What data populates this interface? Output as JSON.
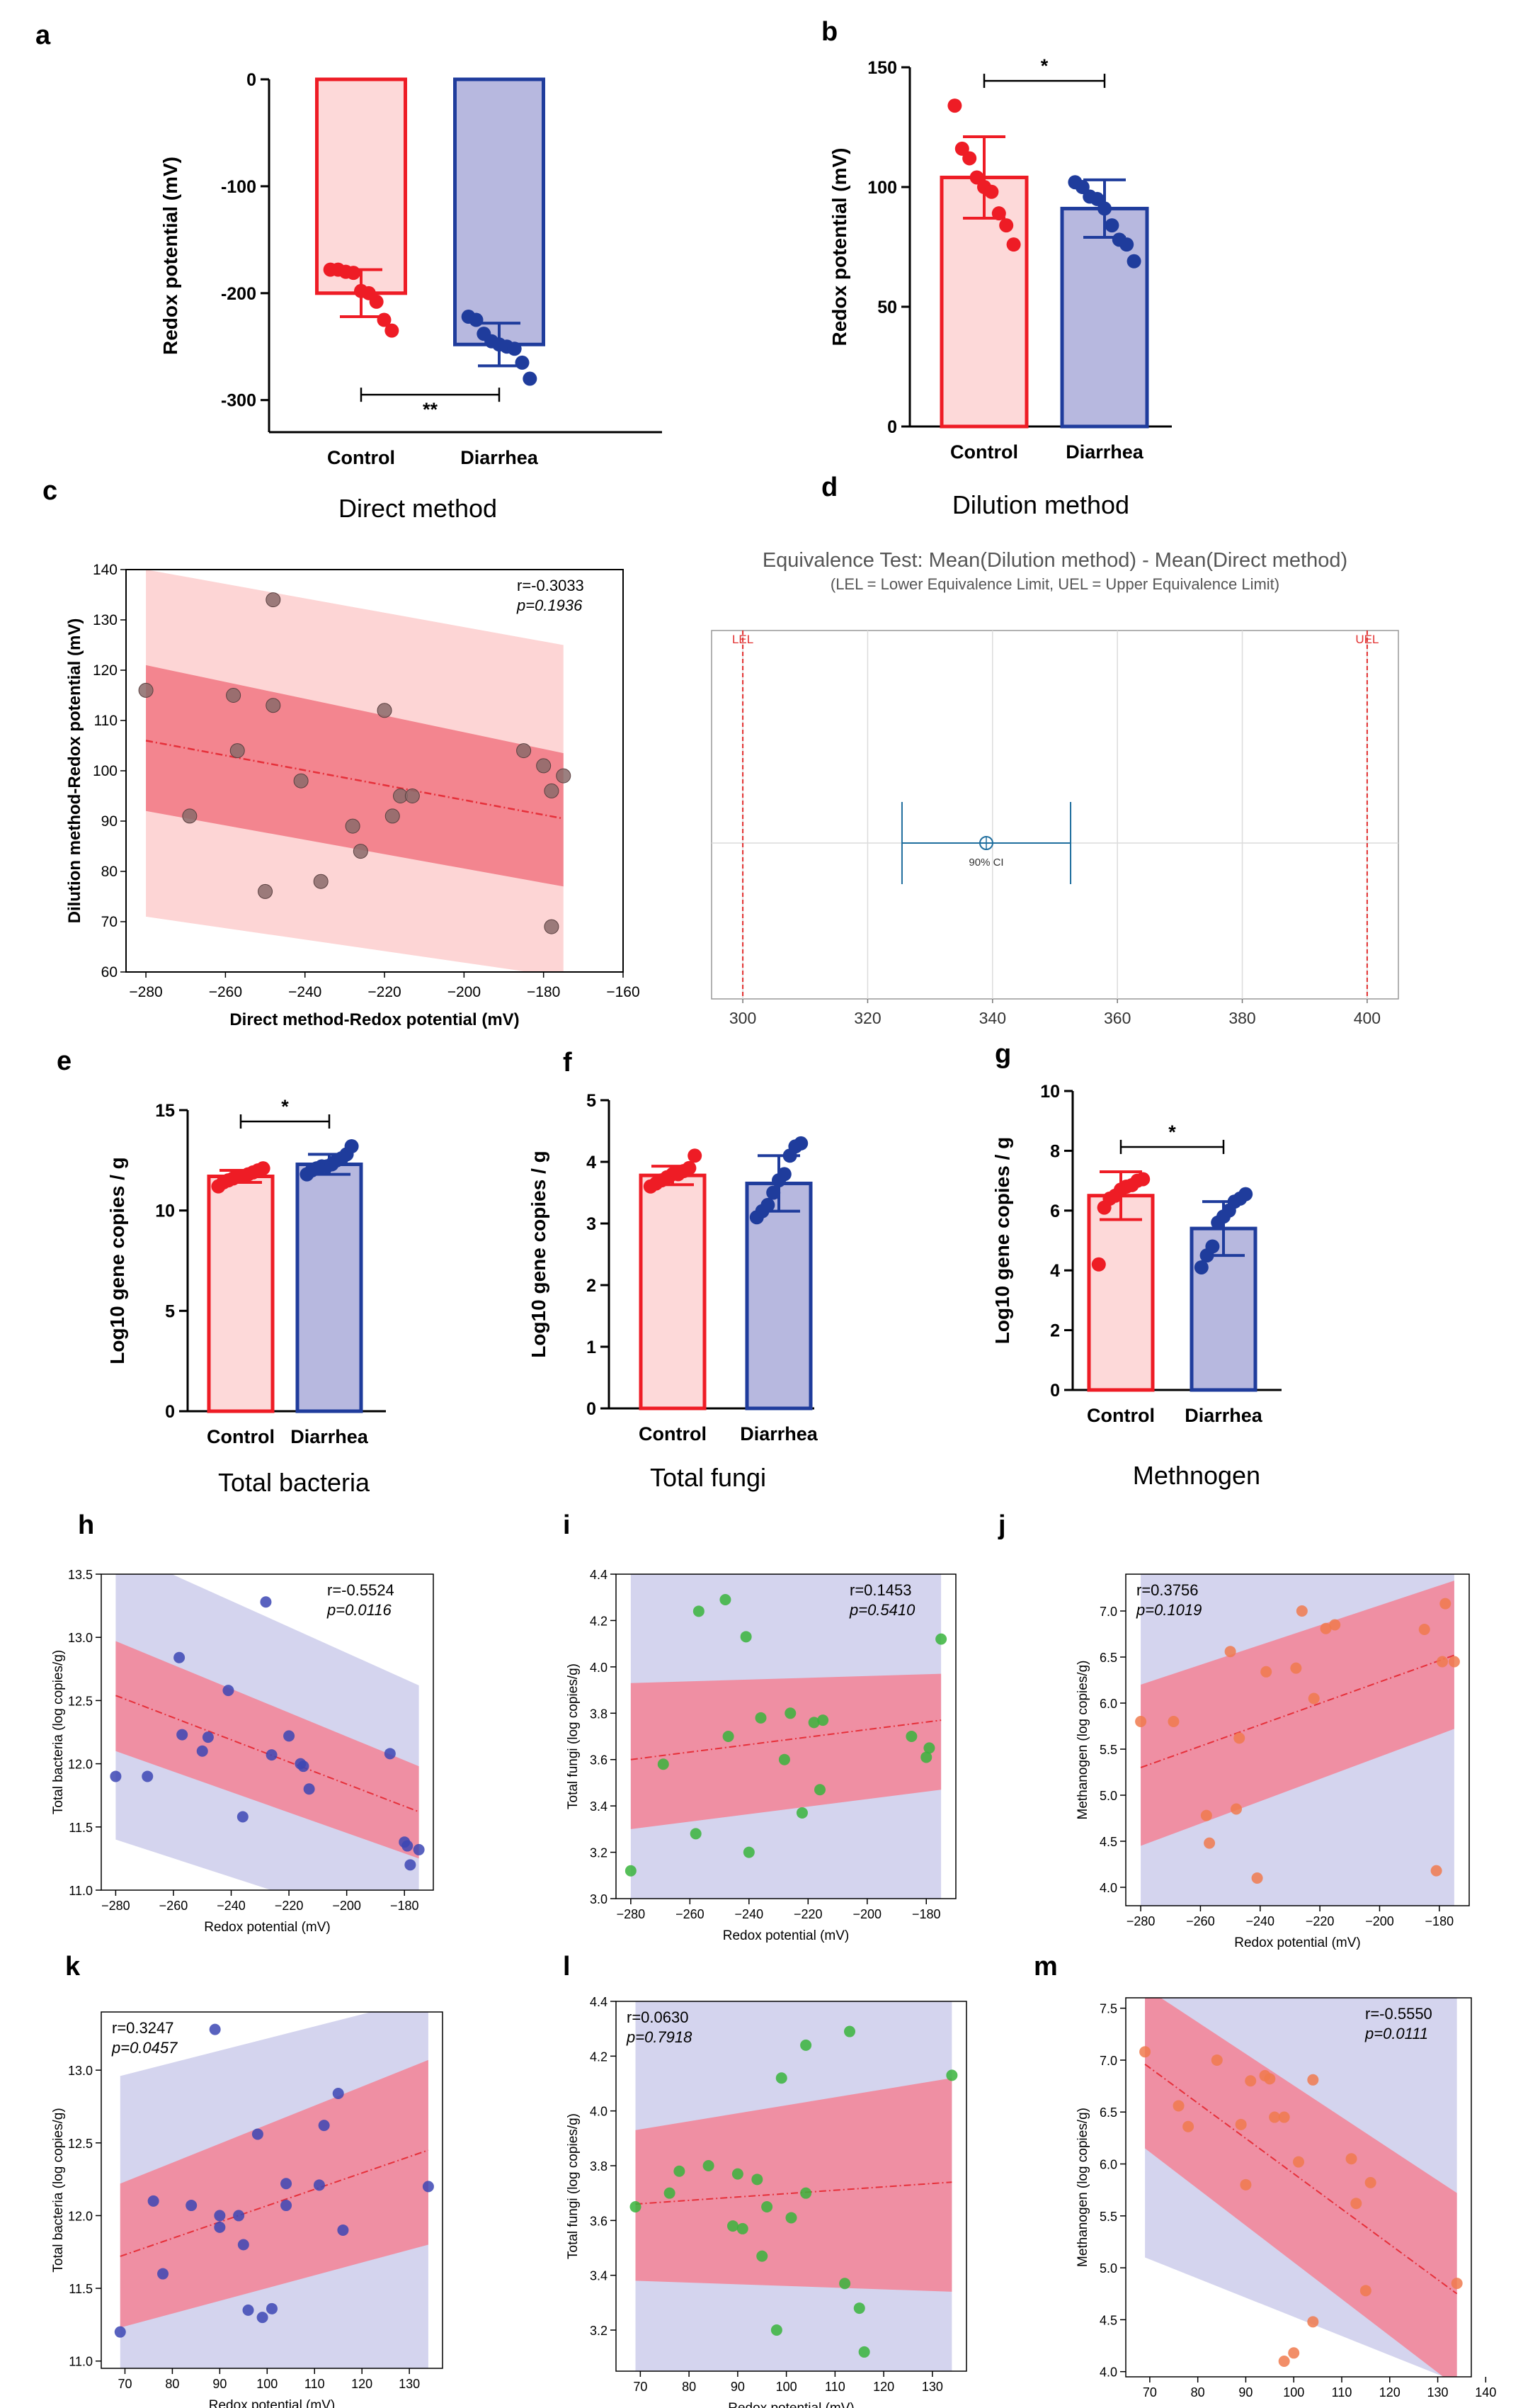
{
  "colors": {
    "control_fill": "#fdd9d9",
    "control_stroke": "#ee1c25",
    "diarrhea_fill": "#b7b8df",
    "diarrhea_stroke": "#1f3c9c",
    "ci_light_red": "#fdd5d5",
    "ci_dark_red": "#f3858f",
    "ci_lavender": "#d4d4ee",
    "ci_pink": "#ef8fa3",
    "trend_red": "#e6303a",
    "scatter_gray": "#8a6a6a",
    "scatter_blue": "#3c46b4",
    "scatter_green": "#38b43c",
    "scatter_orange": "#f07a4e",
    "eq_line": "#1f6e9e",
    "eq_limit": "#e23030"
  },
  "chart_data": [
    {
      "id": "a",
      "type": "bar",
      "letter": "a",
      "title": "",
      "group_label": "Direct method",
      "xlabel": "",
      "ylabel": "Redox potential (mV)",
      "ylim": [
        -330,
        0
      ],
      "yticks": [
        0,
        -100,
        -200,
        -300
      ],
      "ytick_labels": [
        "0",
        "-100",
        "-200",
        "-300"
      ],
      "categories": [
        "Control",
        "Diarrhea"
      ],
      "values": [
        -200,
        -248
      ],
      "sd": [
        22,
        20
      ],
      "points": [
        [
          -178,
          -178,
          -180,
          -181,
          -198,
          -200,
          -208,
          -225,
          -235
        ],
        [
          -222,
          -225,
          -238,
          -245,
          -248,
          -250,
          -252,
          -265,
          -280
        ]
      ],
      "significance": {
        "label": "**",
        "position": "below"
      }
    },
    {
      "id": "b",
      "type": "bar",
      "letter": "b",
      "title": "",
      "group_label": "Dilution method",
      "xlabel": "",
      "ylabel": "Redox potential (mV)",
      "ylim": [
        0,
        150
      ],
      "yticks": [
        0,
        50,
        100,
        150
      ],
      "ytick_labels": [
        "0",
        "50",
        "100",
        "150"
      ],
      "categories": [
        "Control",
        "Diarrhea"
      ],
      "values": [
        104,
        91
      ],
      "sd": [
        17,
        12
      ],
      "points": [
        [
          134,
          116,
          112,
          104,
          100,
          98,
          89,
          84,
          76
        ],
        [
          102,
          100,
          96,
          95,
          91,
          84,
          78,
          76,
          69
        ]
      ],
      "significance": {
        "label": "*",
        "position": "above"
      }
    },
    {
      "id": "c",
      "type": "scatter",
      "letter": "c",
      "xlabel": "Direct method-Redox potential (mV)",
      "ylabel": "Dilution method-Redox potential (mV)",
      "xlim": [
        -285,
        -160
      ],
      "ylim": [
        60,
        140
      ],
      "xticks": [
        -280,
        -260,
        -240,
        -220,
        -200,
        -180,
        -160
      ],
      "xtick_labels": [
        "−280",
        "−260",
        "−240",
        "−220",
        "−200",
        "−180",
        "−160"
      ],
      "yticks": [
        60,
        70,
        80,
        90,
        100,
        110,
        120,
        130,
        140
      ],
      "ytick_labels": [
        "60",
        "70",
        "80",
        "90",
        "100",
        "110",
        "120",
        "130",
        "140"
      ],
      "x": [
        -280,
        -269,
        -258,
        -257,
        -250,
        -248,
        -241,
        -236,
        -228,
        -226,
        -220,
        -218,
        -216,
        -213,
        -185,
        -180,
        -178,
        -178,
        -175
      ],
      "y": [
        116,
        91,
        115,
        104,
        76,
        113,
        98,
        78,
        89,
        84,
        112,
        91,
        95,
        95,
        104,
        101,
        96,
        69,
        99
      ],
      "point_top_y": 134,
      "point_top_x": -248,
      "r_text": "r=-0.3033",
      "p_text": "p=0.1936",
      "line": {
        "x0": -280,
        "y0": 106,
        "x1": -175,
        "y1": 90.5
      },
      "ci_inner_upper": [
        121,
        103.5
      ],
      "ci_inner_lower": [
        92,
        77
      ],
      "ci_outer_upper": [
        140,
        125
      ],
      "ci_outer_lower": [
        71,
        59
      ]
    },
    {
      "id": "d",
      "type": "equivalence",
      "letter": "d",
      "title": "Equivalence Test: Mean(Dilution method) - Mean(Direct method)",
      "subtitle": "(LEL = Lower Equivalence Limit, UEL = Upper Equivalence Limit)",
      "xlim": [
        295,
        405
      ],
      "xticks": [
        300,
        320,
        340,
        360,
        380,
        400
      ],
      "xtick_labels": [
        "300",
        "320",
        "340",
        "360",
        "380",
        "400"
      ],
      "lel": 300,
      "uel": 400,
      "lel_label": "LEL",
      "uel_label": "UEL",
      "mean": 339,
      "ci_low": 325.5,
      "ci_high": 352.5,
      "ci_label": "90% CI"
    },
    {
      "id": "e",
      "type": "bar",
      "letter": "e",
      "group_label": "Total bacteria",
      "ylabel": "Log10 gene copies / g",
      "ylim": [
        0,
        15
      ],
      "yticks": [
        0,
        5,
        10,
        15
      ],
      "ytick_labels": [
        "0",
        "5",
        "10",
        "15"
      ],
      "categories": [
        "Control",
        "Diarrhea"
      ],
      "values": [
        11.7,
        12.3
      ],
      "sd": [
        0.3,
        0.5
      ],
      "points": [
        [
          11.2,
          11.4,
          11.5,
          11.6,
          11.7,
          11.7,
          11.8,
          11.9,
          12.0,
          12.1
        ],
        [
          11.8,
          12.0,
          12.1,
          12.2,
          12.2,
          12.3,
          12.5,
          12.6,
          12.8,
          13.2
        ]
      ],
      "significance": {
        "label": "*",
        "position": "above"
      }
    },
    {
      "id": "f",
      "type": "bar",
      "letter": "f",
      "group_label": "Total fungi",
      "ylabel": "Log10 gene copies / g",
      "ylim": [
        0,
        5
      ],
      "yticks": [
        0,
        1,
        2,
        3,
        4,
        5
      ],
      "ytick_labels": [
        "0",
        "1",
        "2",
        "3",
        "4",
        "5"
      ],
      "categories": [
        "Control",
        "Diarrhea"
      ],
      "values": [
        3.78,
        3.65
      ],
      "sd": [
        0.15,
        0.45
      ],
      "points": [
        [
          3.6,
          3.65,
          3.7,
          3.75,
          3.8,
          3.8,
          3.85,
          3.9,
          4.1
        ],
        [
          3.1,
          3.2,
          3.3,
          3.5,
          3.7,
          3.8,
          4.1,
          4.25,
          4.3
        ]
      ],
      "significance": null
    },
    {
      "id": "g",
      "type": "bar",
      "letter": "g",
      "group_label": "Methnogen",
      "ylabel": "Log10 gene copies / g",
      "ylim": [
        0,
        10
      ],
      "yticks": [
        0,
        2,
        4,
        6,
        8,
        10
      ],
      "ytick_labels": [
        "0",
        "2",
        "4",
        "6",
        "8",
        "10"
      ],
      "categories": [
        "Control",
        "Diarrhea"
      ],
      "values": [
        6.5,
        5.4
      ],
      "sd": [
        0.8,
        0.9
      ],
      "points": [
        [
          4.2,
          6.1,
          6.4,
          6.5,
          6.7,
          6.8,
          6.85,
          7.0,
          7.05
        ],
        [
          4.1,
          4.5,
          4.8,
          5.6,
          5.8,
          6.0,
          6.3,
          6.4,
          6.55
        ]
      ],
      "significance": {
        "label": "*",
        "position": "above"
      }
    },
    {
      "id": "h",
      "type": "scatter",
      "letter": "h",
      "color_key": "scatter_blue",
      "band_key": "ci_lavender",
      "xlabel": "Redox potential (mV)",
      "ylabel": "Total bacteria (log copies/g)",
      "xlim": [
        -285,
        -170
      ],
      "ylim": [
        11.0,
        13.5
      ],
      "xticks": [
        -280,
        -260,
        -240,
        -220,
        -200,
        -180
      ],
      "xtick_labels": [
        "−280",
        "−260",
        "−240",
        "−220",
        "−200",
        "−180"
      ],
      "yticks": [
        11.0,
        11.5,
        12.0,
        12.5,
        13.0,
        13.5
      ],
      "ytick_labels": [
        "11.0",
        "11.5",
        "12.0",
        "12.5",
        "13.0",
        "13.5"
      ],
      "x": [
        -280,
        -269,
        -258,
        -257,
        -250,
        -248,
        -241,
        -236,
        -228,
        -226,
        -220,
        -216,
        -215,
        -213,
        -185,
        -180,
        -179,
        -178,
        -175
      ],
      "y": [
        11.9,
        11.9,
        12.84,
        12.23,
        12.1,
        12.21,
        12.58,
        11.58,
        13.28,
        12.07,
        12.22,
        12.0,
        11.98,
        11.8,
        12.08,
        11.38,
        11.35,
        11.2,
        11.32
      ],
      "r_text": "r=-0.5524",
      "p_text": "p=0.0116",
      "line": {
        "x0": -280,
        "y0": 12.54,
        "x1": -175,
        "y1": 11.62
      },
      "ci_inner_upper": [
        12.97,
        11.98
      ],
      "ci_inner_lower": [
        12.1,
        11.25
      ],
      "ci_outer_upper": [
        13.7,
        12.62
      ],
      "ci_outer_lower": [
        11.4,
        10.62
      ]
    },
    {
      "id": "i",
      "type": "scatter",
      "letter": "i",
      "color_key": "scatter_green",
      "band_key": "ci_lavender",
      "xlabel": "Redox potential (mV)",
      "ylabel": "Total fungi (log copies/g)",
      "xlim": [
        -285,
        -170
      ],
      "ylim": [
        3.0,
        4.4
      ],
      "xticks": [
        -280,
        -260,
        -240,
        -220,
        -200,
        -180
      ],
      "xtick_labels": [
        "−280",
        "−260",
        "−240",
        "−220",
        "−200",
        "−180"
      ],
      "yticks": [
        3.0,
        3.2,
        3.4,
        3.6,
        3.8,
        4.0,
        4.2,
        4.4
      ],
      "ytick_labels": [
        "3.0",
        "3.2",
        "3.4",
        "3.6",
        "3.8",
        "4.0",
        "4.2",
        "4.4"
      ],
      "x": [
        -280,
        -269,
        -258,
        -257,
        -248,
        -247,
        -241,
        -240,
        -236,
        -228,
        -226,
        -222,
        -218,
        -216,
        -215,
        -185,
        -180,
        -179,
        -175
      ],
      "y": [
        3.12,
        3.58,
        3.28,
        4.24,
        4.29,
        3.7,
        4.13,
        3.2,
        3.78,
        3.6,
        3.8,
        3.37,
        3.76,
        3.47,
        3.77,
        3.7,
        3.61,
        3.65,
        4.12
      ],
      "r_text": "r=0.1453",
      "p_text": "p=0.5410",
      "line": {
        "x0": -280,
        "y0": 3.6,
        "x1": -175,
        "y1": 3.77
      },
      "ci_inner_upper": [
        3.93,
        3.97
      ],
      "ci_inner_lower": [
        3.3,
        3.47
      ],
      "ci_outer_upper": [
        4.5,
        4.5
      ],
      "ci_outer_lower": [
        2.9,
        2.9
      ]
    },
    {
      "id": "j",
      "type": "scatter",
      "letter": "j",
      "color_key": "scatter_orange",
      "band_key": "ci_lavender",
      "xlabel": "Redox potential (mV)",
      "ylabel": "Methanogen (log copies/g)",
      "xlim": [
        -285,
        -170
      ],
      "ylim": [
        3.8,
        7.4
      ],
      "xticks": [
        -280,
        -260,
        -240,
        -220,
        -200,
        -180
      ],
      "xtick_labels": [
        "−280",
        "−260",
        "−240",
        "−220",
        "−200",
        "−180"
      ],
      "yticks": [
        4.0,
        4.5,
        5.0,
        5.5,
        6.0,
        6.5,
        7.0
      ],
      "ytick_labels": [
        "4.0",
        "4.5",
        "5.0",
        "5.5",
        "6.0",
        "6.5",
        "7.0"
      ],
      "x": [
        -280,
        -269,
        -258,
        -257,
        -250,
        -248,
        -247,
        -241,
        -238,
        -228,
        -226,
        -222,
        -218,
        -215,
        -185,
        -181,
        -179,
        -178,
        -175
      ],
      "y": [
        5.8,
        5.8,
        4.78,
        4.48,
        6.56,
        4.85,
        5.62,
        4.1,
        6.34,
        6.38,
        7.0,
        6.05,
        6.81,
        6.85,
        6.8,
        4.18,
        6.45,
        7.08,
        6.45
      ],
      "r_text": "r=0.3756",
      "p_text": "p=0.1019",
      "line": {
        "x0": -280,
        "y0": 5.3,
        "x1": -175,
        "y1": 6.52
      },
      "ci_inner_upper": [
        6.2,
        7.33
      ],
      "ci_inner_lower": [
        4.45,
        5.72
      ],
      "ci_outer_upper": [
        7.55,
        7.55
      ],
      "ci_outer_lower": [
        3.75,
        3.75
      ]
    },
    {
      "id": "k",
      "type": "scatter",
      "letter": "k",
      "color_key": "scatter_blue",
      "band_key": "ci_lavender",
      "xlabel": "Redox potential (mV)",
      "ylabel": "Total bacteria (log copies/g)",
      "xlim": [
        65,
        137
      ],
      "ylim": [
        10.95,
        13.4
      ],
      "xticks": [
        70,
        80,
        90,
        100,
        110,
        120,
        130
      ],
      "xtick_labels": [
        "70",
        "80",
        "90",
        "100",
        "110",
        "120",
        "130"
      ],
      "yticks": [
        11.0,
        11.5,
        12.0,
        12.5,
        13.0
      ],
      "ytick_labels": [
        "11.0",
        "11.5",
        "12.0",
        "12.5",
        "13.0"
      ],
      "x": [
        69,
        76,
        78,
        84,
        89,
        90,
        90,
        94,
        95,
        96,
        98,
        99,
        101,
        104,
        104,
        111,
        112,
        115,
        116,
        134
      ],
      "y": [
        11.2,
        12.1,
        11.6,
        12.07,
        13.28,
        12.0,
        11.92,
        12.0,
        11.8,
        11.35,
        12.56,
        11.3,
        11.36,
        12.22,
        12.07,
        12.21,
        12.62,
        12.84,
        11.9,
        12.2
      ],
      "r_text": "r=0.3247",
      "p_text": "p=0.0457",
      "line": {
        "x0": 69,
        "y0": 11.72,
        "x1": 134,
        "y1": 12.45
      },
      "ci_inner_upper": [
        12.22,
        13.07
      ],
      "ci_inner_lower": [
        11.23,
        11.8
      ],
      "ci_outer_upper": [
        12.96,
        13.5
      ],
      "ci_outer_lower": [
        10.88,
        10.88
      ]
    },
    {
      "id": "l",
      "type": "scatter",
      "letter": "l",
      "color_key": "scatter_green",
      "band_key": "ci_lavender",
      "xlabel": "Redox potential (mV)",
      "ylabel": "Total fungi (log copies/g)",
      "xlim": [
        65,
        137
      ],
      "ylim": [
        3.05,
        4.4
      ],
      "xticks": [
        70,
        80,
        90,
        100,
        110,
        120,
        130
      ],
      "xtick_labels": [
        "70",
        "80",
        "90",
        "100",
        "110",
        "120",
        "130"
      ],
      "yticks": [
        3.2,
        3.4,
        3.6,
        3.8,
        4.0,
        4.2,
        4.4
      ],
      "ytick_labels": [
        "3.2",
        "3.4",
        "3.6",
        "3.8",
        "4.0",
        "4.2",
        "4.4"
      ],
      "x": [
        69,
        76,
        78,
        84,
        89,
        90,
        91,
        94,
        95,
        96,
        98,
        99,
        101,
        104,
        104,
        112,
        113,
        115,
        116,
        134
      ],
      "y": [
        3.65,
        3.7,
        3.78,
        3.8,
        3.58,
        3.77,
        3.57,
        3.75,
        3.47,
        3.65,
        3.2,
        4.12,
        3.61,
        3.7,
        4.24,
        3.37,
        4.29,
        3.28,
        3.12,
        4.13
      ],
      "r_text": "r=0.0630",
      "p_text": "p=0.7918",
      "line": {
        "x0": 69,
        "y0": 3.66,
        "x1": 134,
        "y1": 3.74
      },
      "ci_inner_upper": [
        3.93,
        4.12
      ],
      "ci_inner_lower": [
        3.38,
        3.34
      ],
      "ci_outer_upper": [
        4.5,
        4.5
      ],
      "ci_outer_lower": [
        2.95,
        2.95
      ]
    },
    {
      "id": "m",
      "type": "scatter",
      "letter": "m",
      "color_key": "scatter_orange",
      "band_key": "ci_lavender",
      "xlabel": "Redox potential (mV)",
      "ylabel": "Methanogen (log copies/g)",
      "xlim": [
        65,
        137
      ],
      "ylim": [
        3.95,
        7.6
      ],
      "xticks": [
        70,
        80,
        90,
        100,
        110,
        120,
        130,
        140
      ],
      "xtick_labels": [
        "70",
        "80",
        "90",
        "100",
        "110",
        "120",
        "130",
        "140"
      ],
      "yticks": [
        4.0,
        4.5,
        5.0,
        5.5,
        6.0,
        6.5,
        7.0,
        7.5
      ],
      "ytick_labels": [
        "4.0",
        "4.5",
        "5.0",
        "5.5",
        "6.0",
        "6.5",
        "7.0",
        "7.5"
      ],
      "x": [
        69,
        76,
        78,
        84,
        89,
        90,
        91,
        94,
        95,
        96,
        98,
        98,
        100,
        101,
        104,
        104,
        112,
        113,
        115,
        116,
        134
      ],
      "y": [
        7.08,
        6.56,
        6.36,
        7.0,
        6.38,
        5.8,
        6.8,
        6.85,
        6.82,
        6.45,
        4.1,
        6.45,
        4.18,
        6.02,
        4.48,
        6.81,
        6.05,
        5.62,
        4.78,
        5.82,
        4.85
      ],
      "r_text": "r=-0.5550",
      "p_text": "p=0.0111",
      "line": {
        "x0": 69,
        "y0": 6.96,
        "x1": 134,
        "y1": 4.75
      },
      "ci_inner_upper": [
        7.7,
        5.72
      ],
      "ci_inner_lower": [
        6.15,
        3.85
      ],
      "ci_outer_upper": [
        7.7,
        7.7
      ],
      "ci_outer_lower": [
        5.1,
        3.9
      ]
    }
  ]
}
